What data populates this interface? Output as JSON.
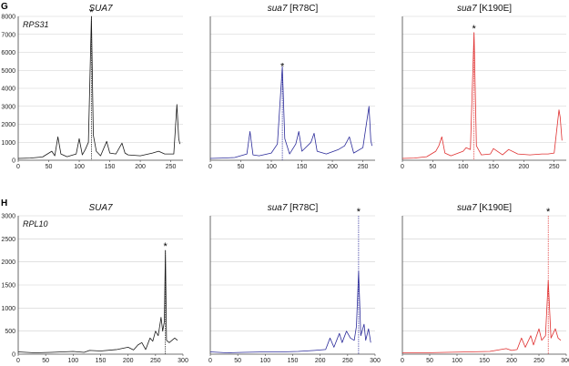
{
  "panel_labels": [
    "G",
    "H"
  ],
  "colors": {
    "SUA7": "#1a1a1a",
    "R78C": "#2b2b9a",
    "K190E": "#e03030",
    "grid": "#cfcfcf"
  },
  "chart_data": [
    {
      "type": "line",
      "row": "G",
      "title": "SUA7",
      "title_italic": "SUA7",
      "title_suffix": "",
      "gene_label": "RPS31",
      "color_key": "SUA7",
      "xlim": [
        0,
        270
      ],
      "xticks": [
        0,
        50,
        100,
        150,
        200,
        250
      ],
      "ylim": [
        0,
        8000
      ],
      "yticks": [
        0,
        1000,
        2000,
        3000,
        4000,
        5000,
        6000,
        7000,
        8000
      ],
      "grid": true,
      "show_yticks": true,
      "peak_marker": {
        "x": 120,
        "y": 8000,
        "label": "*"
      },
      "series": [
        {
          "x": [
            0,
            20,
            40,
            55,
            60,
            65,
            70,
            80,
            95,
            100,
            105,
            110,
            115,
            120,
            123,
            128,
            135,
            145,
            150,
            160,
            170,
            175,
            180,
            200,
            220,
            230,
            240,
            255,
            260,
            263,
            265
          ],
          "y": [
            100,
            120,
            180,
            500,
            250,
            1300,
            350,
            200,
            350,
            1200,
            300,
            600,
            1000,
            8000,
            1400,
            500,
            250,
            1050,
            400,
            350,
            950,
            400,
            300,
            250,
            400,
            500,
            350,
            350,
            3100,
            1200,
            900
          ]
        }
      ]
    },
    {
      "type": "line",
      "row": "G",
      "title": "sua7 [R78C]",
      "title_italic": "sua7",
      "title_suffix": " [R78C]",
      "gene_label": "",
      "color_key": "R78C",
      "xlim": [
        0,
        270
      ],
      "xticks": [
        0,
        50,
        100,
        150,
        200,
        250
      ],
      "ylim": [
        0,
        8000
      ],
      "yticks": [
        0,
        1000,
        2000,
        3000,
        4000,
        5000,
        6000,
        7000,
        8000
      ],
      "grid": true,
      "show_yticks": false,
      "peak_marker": {
        "x": 118,
        "y": 5000,
        "label": "*"
      },
      "series": [
        {
          "x": [
            0,
            20,
            40,
            60,
            65,
            70,
            80,
            100,
            110,
            118,
            122,
            130,
            140,
            145,
            150,
            165,
            170,
            175,
            190,
            210,
            220,
            228,
            235,
            250,
            260,
            263,
            265
          ],
          "y": [
            100,
            120,
            150,
            350,
            1600,
            300,
            250,
            400,
            900,
            5200,
            1200,
            350,
            900,
            1600,
            500,
            1000,
            1500,
            500,
            350,
            600,
            800,
            1300,
            400,
            700,
            3000,
            1100,
            800
          ]
        }
      ]
    },
    {
      "type": "line",
      "row": "G",
      "title": "sua7 [K190E]",
      "title_italic": "sua7",
      "title_suffix": " [K190E]",
      "gene_label": "",
      "color_key": "K190E",
      "xlim": [
        0,
        270
      ],
      "xticks": [
        0,
        50,
        100,
        150,
        200,
        250
      ],
      "ylim": [
        0,
        8000
      ],
      "yticks": [
        0,
        1000,
        2000,
        3000,
        4000,
        5000,
        6000,
        7000,
        8000
      ],
      "grid": true,
      "show_yticks": false,
      "peak_marker": {
        "x": 118,
        "y": 7100,
        "label": "*"
      },
      "series": [
        {
          "x": [
            0,
            20,
            40,
            55,
            60,
            65,
            70,
            80,
            100,
            105,
            112,
            118,
            122,
            130,
            145,
            150,
            165,
            175,
            190,
            210,
            230,
            240,
            250,
            258,
            260,
            263
          ],
          "y": [
            100,
            120,
            200,
            500,
            800,
            1300,
            400,
            250,
            500,
            700,
            600,
            7100,
            800,
            300,
            350,
            650,
            300,
            600,
            350,
            300,
            350,
            350,
            400,
            2800,
            2400,
            1100
          ]
        }
      ]
    },
    {
      "type": "line",
      "row": "H",
      "title": "SUA7",
      "title_italic": "SUA7",
      "title_suffix": "",
      "gene_label": "RPL10",
      "color_key": "SUA7",
      "xlim": [
        0,
        300
      ],
      "xticks": [
        0,
        50,
        100,
        150,
        200,
        250,
        300
      ],
      "ylim": [
        0,
        3000
      ],
      "yticks": [
        0,
        500,
        1000,
        1500,
        2000,
        2500,
        3000
      ],
      "grid": true,
      "show_yticks": true,
      "peak_marker": {
        "x": 268,
        "y": 2250,
        "label": "*"
      },
      "series": [
        {
          "x": [
            0,
            30,
            60,
            100,
            120,
            130,
            150,
            180,
            200,
            210,
            218,
            225,
            232,
            240,
            245,
            250,
            255,
            260,
            263,
            266,
            268,
            270,
            275,
            285,
            290
          ],
          "y": [
            50,
            30,
            40,
            60,
            40,
            80,
            70,
            100,
            150,
            90,
            200,
            250,
            100,
            350,
            280,
            500,
            400,
            800,
            500,
            700,
            2250,
            300,
            250,
            350,
            300
          ]
        }
      ]
    },
    {
      "type": "line",
      "row": "H",
      "title": "sua7 [R78C]",
      "title_italic": "sua7",
      "title_suffix": " [R78C]",
      "gene_label": "",
      "color_key": "R78C",
      "xlim": [
        0,
        300
      ],
      "xticks": [
        0,
        50,
        100,
        150,
        200,
        250,
        300
      ],
      "ylim": [
        0,
        3000
      ],
      "yticks": [
        0,
        500,
        1000,
        1500,
        2000,
        2500,
        3000
      ],
      "grid": true,
      "show_yticks": false,
      "peak_marker": {
        "x": 270,
        "y": 3000,
        "label": "*"
      },
      "series": [
        {
          "x": [
            0,
            30,
            60,
            100,
            130,
            160,
            190,
            210,
            218,
            225,
            235,
            240,
            248,
            255,
            262,
            266,
            270,
            274,
            280,
            283,
            288,
            292
          ],
          "y": [
            50,
            30,
            40,
            50,
            50,
            60,
            80,
            100,
            350,
            150,
            450,
            250,
            500,
            350,
            300,
            600,
            1800,
            400,
            650,
            300,
            550,
            250
          ]
        }
      ]
    },
    {
      "type": "line",
      "row": "H",
      "title": "sua7 [K190E]",
      "title_italic": "sua7",
      "title_suffix": " [K190E]",
      "gene_label": "",
      "color_key": "K190E",
      "xlim": [
        0,
        300
      ],
      "xticks": [
        0,
        50,
        100,
        150,
        200,
        250,
        300
      ],
      "ylim": [
        0,
        3000
      ],
      "yticks": [
        0,
        500,
        1000,
        1500,
        2000,
        2500,
        3000
      ],
      "grid": true,
      "show_yticks": false,
      "peak_marker": {
        "x": 267,
        "y": 3000,
        "label": "*"
      },
      "series": [
        {
          "x": [
            0,
            40,
            80,
            120,
            160,
            190,
            200,
            210,
            218,
            225,
            235,
            240,
            250,
            255,
            262,
            267,
            272,
            280,
            285,
            290
          ],
          "y": [
            30,
            30,
            40,
            50,
            60,
            120,
            80,
            100,
            350,
            150,
            400,
            200,
            550,
            300,
            400,
            1600,
            350,
            550,
            350,
            300
          ]
        }
      ]
    }
  ]
}
